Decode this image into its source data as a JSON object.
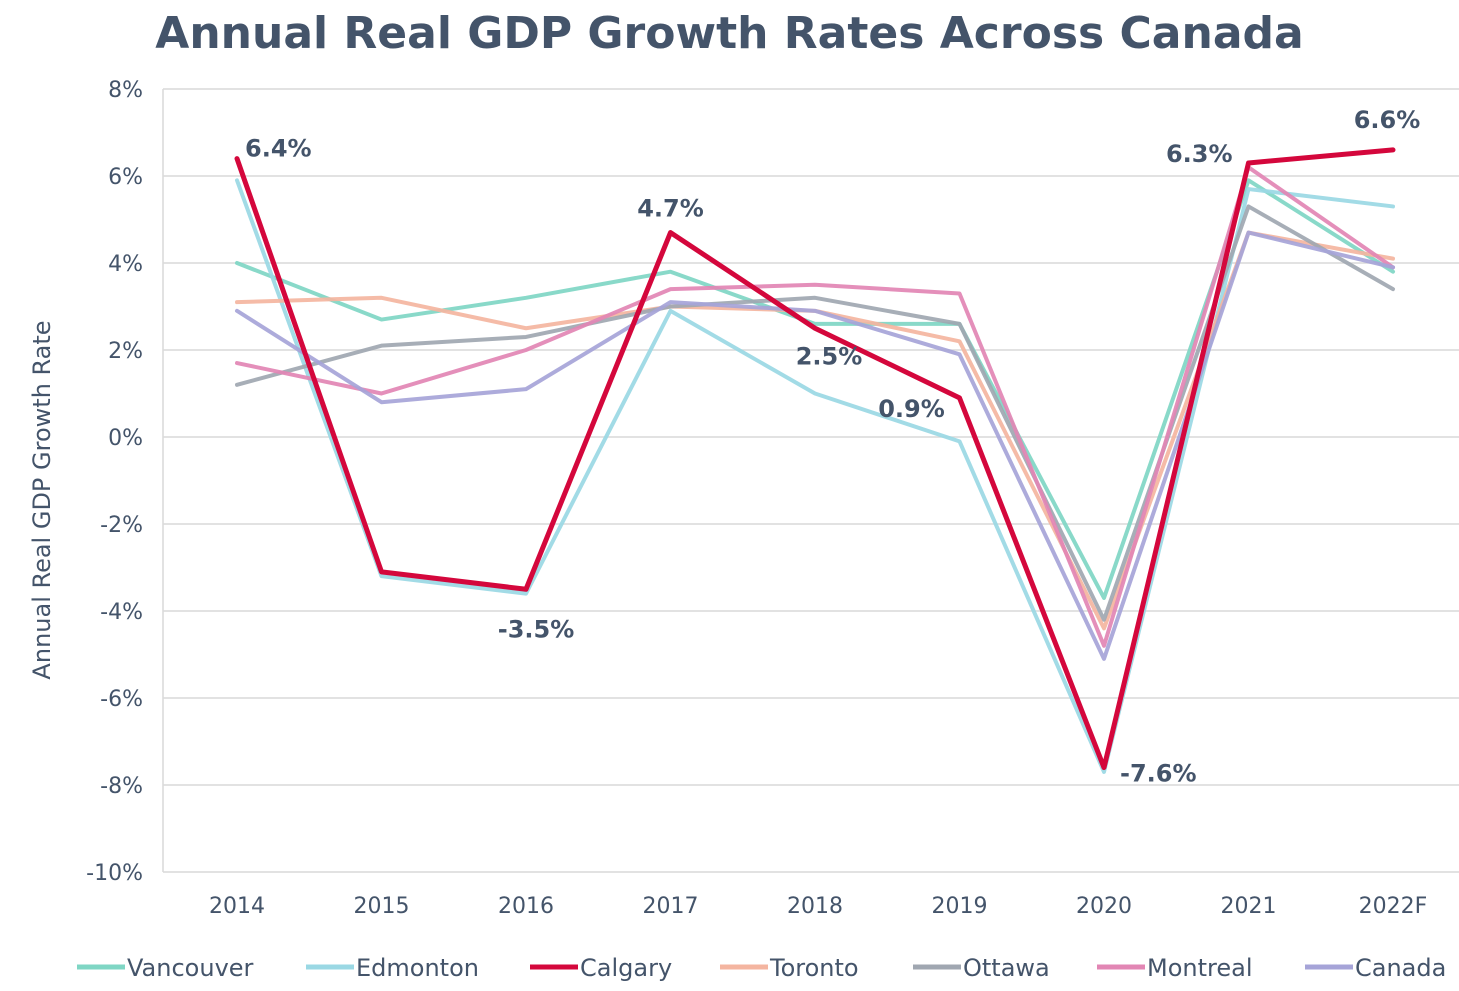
{
  "chart_data": {
    "type": "line",
    "title": "Annual Real GDP Growth Rates Across Canada",
    "xlabel": "",
    "ylabel": "Annual Real GDP Growth Rate",
    "categories": [
      "2014",
      "2015",
      "2016",
      "2017",
      "2018",
      "2019",
      "2020",
      "2021",
      "2022F"
    ],
    "ylim": [
      -10,
      8
    ],
    "yticks": [
      8,
      6,
      4,
      2,
      0,
      -2,
      -4,
      -6,
      -8,
      -10
    ],
    "ytick_labels": [
      "8%",
      "6%",
      "4%",
      "2%",
      "0%",
      "-2%",
      "-4%",
      "-6%",
      "-8%",
      "-10%"
    ],
    "grid": true,
    "legend_position": "bottom",
    "series": [
      {
        "name": "Vancouver",
        "color": "#7fd6c4",
        "values": [
          4.0,
          2.7,
          3.2,
          3.8,
          2.6,
          2.6,
          -3.7,
          5.9,
          3.8
        ]
      },
      {
        "name": "Edmonton",
        "color": "#9ad8e4",
        "values": [
          5.9,
          -3.2,
          -3.6,
          2.9,
          1.0,
          -0.1,
          -7.7,
          5.7,
          5.3
        ]
      },
      {
        "name": "Calgary",
        "color": "#d4073c",
        "values": [
          6.4,
          -3.1,
          -3.5,
          4.7,
          2.5,
          0.9,
          -7.6,
          6.3,
          6.6
        ]
      },
      {
        "name": "Toronto",
        "color": "#f4b5a0",
        "values": [
          3.1,
          3.2,
          2.5,
          3.0,
          2.9,
          2.2,
          -4.4,
          4.7,
          4.1
        ]
      },
      {
        "name": "Ottawa",
        "color": "#a0a7b1",
        "values": [
          1.2,
          2.1,
          2.3,
          3.0,
          3.2,
          2.6,
          -4.2,
          5.3,
          3.4
        ]
      },
      {
        "name": "Montreal",
        "color": "#e286b4",
        "values": [
          1.7,
          1.0,
          2.0,
          3.4,
          3.5,
          3.3,
          -4.8,
          6.2,
          3.9
        ]
      },
      {
        "name": "Canada",
        "color": "#a6a4d8",
        "values": [
          2.9,
          0.8,
          1.1,
          3.1,
          2.9,
          1.9,
          -5.1,
          4.7,
          3.9
        ]
      }
    ],
    "annotations": [
      {
        "text": "6.4%",
        "category": "2014",
        "value": 6.4
      },
      {
        "text": "-3.5%",
        "category": "2016",
        "value": -3.5
      },
      {
        "text": "4.7%",
        "category": "2017",
        "value": 4.7
      },
      {
        "text": "2.5%",
        "category": "2018",
        "value": 2.5
      },
      {
        "text": "0.9%",
        "category": "2019",
        "value": 0.9
      },
      {
        "text": "-7.6%",
        "category": "2020",
        "value": -7.6
      },
      {
        "text": "6.3%",
        "category": "2021",
        "value": 6.3
      },
      {
        "text": "6.6%",
        "category": "2022F",
        "value": 6.6
      }
    ]
  }
}
